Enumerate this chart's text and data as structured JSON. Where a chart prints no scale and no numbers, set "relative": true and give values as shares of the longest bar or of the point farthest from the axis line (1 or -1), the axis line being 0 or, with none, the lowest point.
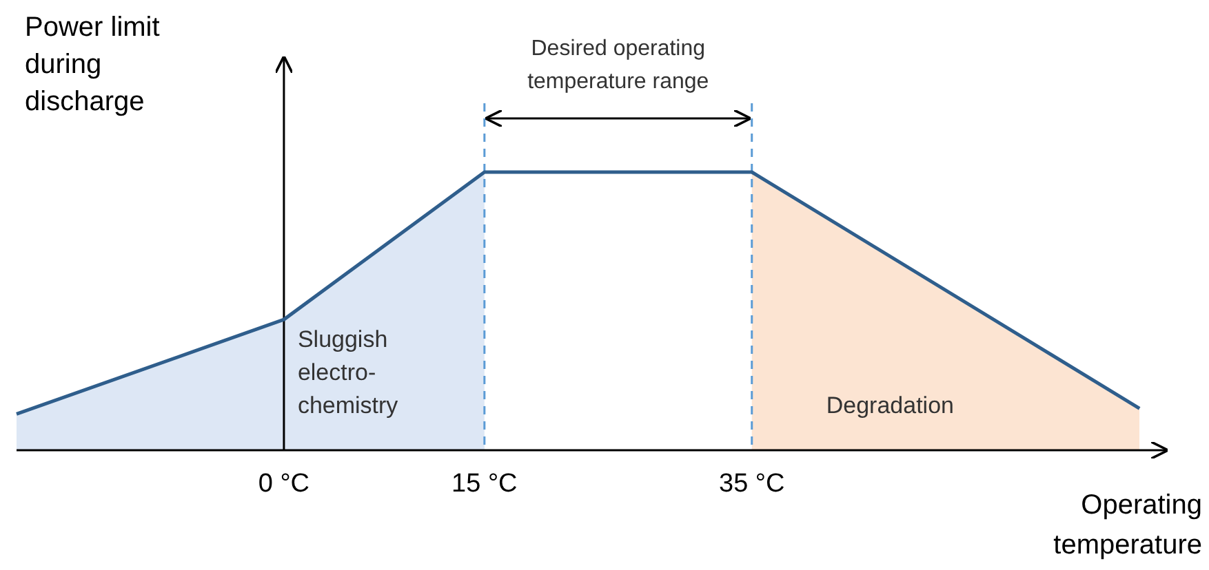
{
  "chart_data": {
    "type": "line",
    "relative": true,
    "xlabel": "Operating temperature",
    "ylabel": "Power limit during discharge",
    "x": [
      -20,
      0,
      15,
      35,
      64
    ],
    "series": [
      {
        "color": "#2f5e8c",
        "values": [
          0.13,
          0.47,
          1,
          1,
          0.15
        ]
      }
    ],
    "xlim": [
      -20,
      66
    ],
    "xticks": [
      {
        "value": 0,
        "label": "0 °C"
      },
      {
        "value": 15,
        "label": "15 °C"
      },
      {
        "value": 35,
        "label": "35 °C"
      }
    ],
    "bands": [
      {
        "axis": "x",
        "from": -20,
        "to": 15,
        "label": "Sluggish electro-chemistry",
        "color": "#dde7f5"
      },
      {
        "axis": "x",
        "from": 35,
        "to": 64,
        "label": "Degradation",
        "color": "#fce4d2"
      }
    ],
    "ref_lines": [
      {
        "axis": "x",
        "value": 15,
        "label": null,
        "color": "#5b9bd5",
        "line_style": "dashed"
      },
      {
        "axis": "x",
        "value": 35,
        "label": null,
        "color": "#5b9bd5",
        "line_style": "dashed"
      }
    ],
    "annotations": [
      "Desired operating temperature range"
    ],
    "marker": "none",
    "line_style": "solid"
  }
}
